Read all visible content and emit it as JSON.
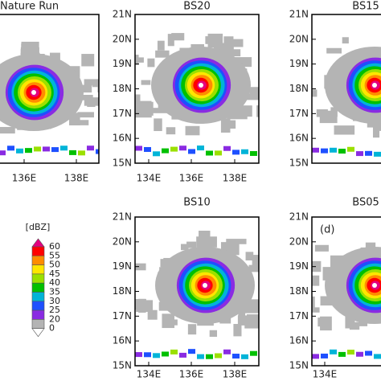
{
  "panels": [
    {
      "title": "Nature Run",
      "xticks": [
        "136E",
        "138E"
      ],
      "yticks": []
    },
    {
      "title": "BS20",
      "xticks": [
        "134E",
        "136E",
        "138E"
      ],
      "yticks": [
        "21N",
        "20N",
        "19N",
        "18N",
        "17N",
        "16N",
        "15N"
      ]
    },
    {
      "title": "BS15",
      "xticks": [],
      "yticks": [
        "21N",
        "20N",
        "19N",
        "18N",
        "17N",
        "16N",
        "15N"
      ]
    },
    {
      "title": "BS10",
      "xticks": [
        "134E",
        "136E",
        "138E"
      ],
      "yticks": [
        "21N",
        "20N",
        "19N",
        "18N",
        "17N",
        "16N",
        "15N"
      ]
    },
    {
      "title": "BS05",
      "label": "(d)",
      "xticks": [
        "134E"
      ],
      "yticks": [
        "21N",
        "20N",
        "19N",
        "18N",
        "17N",
        "16N",
        "15N"
      ]
    }
  ],
  "colorbar": {
    "unit": "[dBZ]",
    "levels": [
      60,
      55,
      50,
      45,
      40,
      35,
      30,
      25,
      20,
      0
    ],
    "over_color": "#e4007f",
    "under_color": "#ffffff",
    "segment_colors": [
      "#ff0000",
      "#ff8c00",
      "#ffe600",
      "#9be000",
      "#00c000",
      "#00b4d8",
      "#1e50ff",
      "#8a2be2",
      "#b4b4b4"
    ]
  }
}
